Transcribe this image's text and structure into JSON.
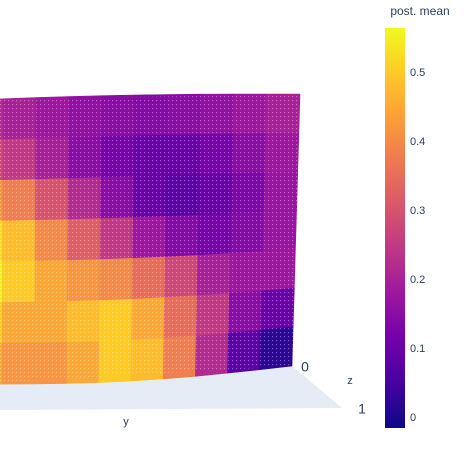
{
  "chart_data": {
    "type": "surface",
    "colorbar_title": "post. mean",
    "y_label": "y",
    "z_label": "z",
    "axis_ticks": [
      0,
      1
    ],
    "colorscale": [
      "#0d0887",
      "#46039f",
      "#7201a8",
      "#9c179e",
      "#bd3786",
      "#d8576b",
      "#ed7953",
      "#fb9f3a",
      "#fdca26",
      "#f0f921"
    ],
    "clim": [
      -0.014,
      0.565
    ],
    "cticks": [
      0,
      0.1,
      0.2,
      0.3,
      0.4,
      0.5
    ],
    "z": [
      [
        0.22,
        0.2,
        0.18,
        0.16,
        0.15,
        0.14,
        0.15,
        0.16,
        0.18,
        0.2
      ],
      [
        0.28,
        0.25,
        0.2,
        0.15,
        0.12,
        0.1,
        0.1,
        0.12,
        0.15,
        0.18
      ],
      [
        0.42,
        0.38,
        0.3,
        0.22,
        0.15,
        0.1,
        0.08,
        0.1,
        0.13,
        0.17
      ],
      [
        0.52,
        0.48,
        0.4,
        0.32,
        0.25,
        0.18,
        0.14,
        0.12,
        0.14,
        0.17
      ],
      [
        0.55,
        0.5,
        0.45,
        0.42,
        0.4,
        0.35,
        0.28,
        0.2,
        0.18,
        0.18
      ],
      [
        0.5,
        0.45,
        0.45,
        0.48,
        0.5,
        0.45,
        0.35,
        0.25,
        0.15,
        0.1
      ],
      [
        0.45,
        0.42,
        0.42,
        0.45,
        0.5,
        0.48,
        0.38,
        0.22,
        0.08,
        0.02
      ]
    ]
  }
}
